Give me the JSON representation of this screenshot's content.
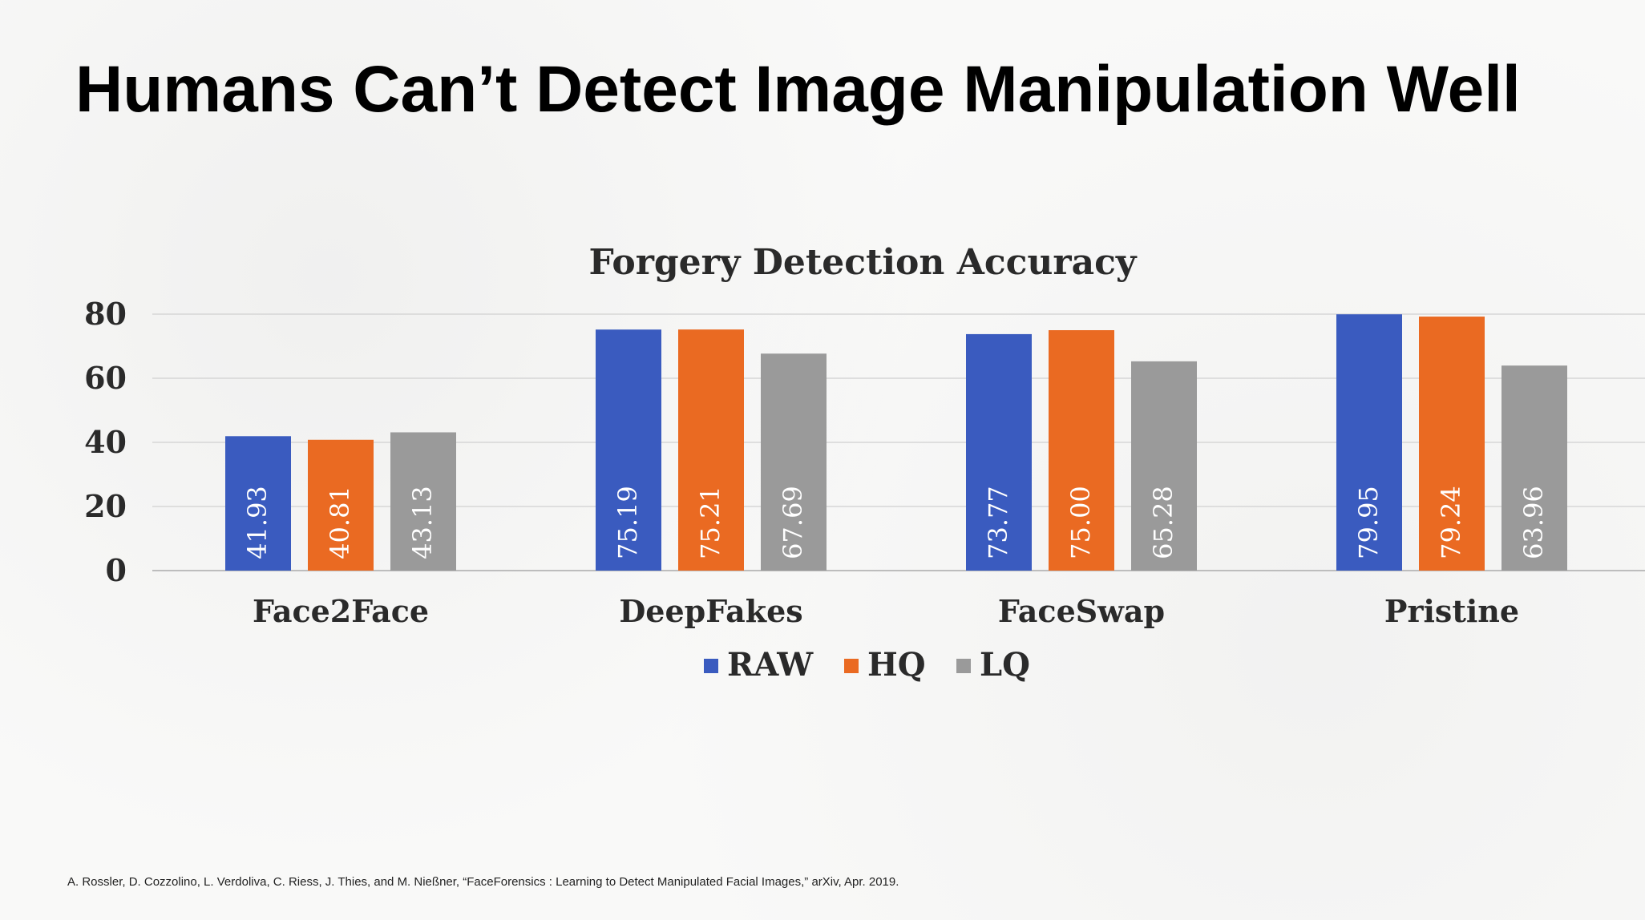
{
  "slide": {
    "title": "Humans Can’t Detect Image Manipulation Well",
    "citation": "A. Rossler, D. Cozzolino, L. Verdoliva, C. Riess, J. Thies, and M. Nießner, “FaceForensics : Learning to Detect Manipulated Facial Images,” arXiv, Apr. 2019."
  },
  "chart_data": {
    "type": "bar",
    "title": "Forgery Detection Accuracy",
    "xlabel": "",
    "ylabel": "",
    "ylim": [
      0,
      80
    ],
    "yticks": [
      0,
      20,
      40,
      60,
      80
    ],
    "grid": true,
    "legend_position": "bottom",
    "categories": [
      "Face2Face",
      "DeepFakes",
      "FaceSwap",
      "Pristine"
    ],
    "series": [
      {
        "name": "RAW",
        "color": "#3a5bbf",
        "values": [
          41.93,
          75.19,
          73.77,
          79.95
        ],
        "labels": [
          "41.93",
          "75.19",
          "73.77",
          "79.95"
        ]
      },
      {
        "name": "HQ",
        "color": "#ea6a22",
        "values": [
          40.81,
          75.21,
          75.0,
          79.24
        ],
        "labels": [
          "40.81",
          "75.21",
          "75.00",
          "79.24"
        ]
      },
      {
        "name": "LQ",
        "color": "#9a9a9a",
        "values": [
          43.13,
          67.69,
          65.28,
          63.96
        ],
        "labels": [
          "43.13",
          "67.69",
          "65.28",
          "63.96"
        ]
      }
    ]
  }
}
